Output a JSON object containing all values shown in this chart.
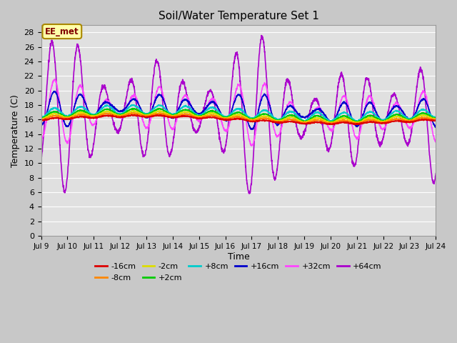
{
  "title": "Soil/Water Temperature Set 1",
  "xlabel": "Time",
  "ylabel": "Temperature (C)",
  "ylim": [
    0,
    29
  ],
  "yticks": [
    0,
    2,
    4,
    6,
    8,
    10,
    12,
    14,
    16,
    18,
    20,
    22,
    24,
    26,
    28
  ],
  "xtick_labels": [
    "Jul 9",
    "Jul 10",
    "Jul 11",
    "Jul 12",
    "Jul 13",
    "Jul 14",
    "Jul 15",
    "Jul 16",
    "Jul 17",
    "Jul 18",
    "Jul 19",
    "Jul 20",
    "Jul 21",
    "Jul 22",
    "Jul 23",
    "Jul 24"
  ],
  "annotation": "EE_met",
  "bg_color": "#e0e0e0",
  "grid_color": "#ffffff",
  "series_colors": {
    "-16cm": "#dd0000",
    "-8cm": "#ff8800",
    "-2cm": "#dddd00",
    "+2cm": "#00cc00",
    "+8cm": "#00cccc",
    "+16cm": "#0000cc",
    "+32cm": "#ff44ff",
    "+64cm": "#aa00cc"
  },
  "legend_order": [
    "-16cm",
    "-8cm",
    "-2cm",
    "+2cm",
    "+8cm",
    "+16cm",
    "+32cm",
    "+64cm"
  ],
  "line_width": 1.2,
  "figsize": [
    6.4,
    4.8
  ],
  "dpi": 100
}
